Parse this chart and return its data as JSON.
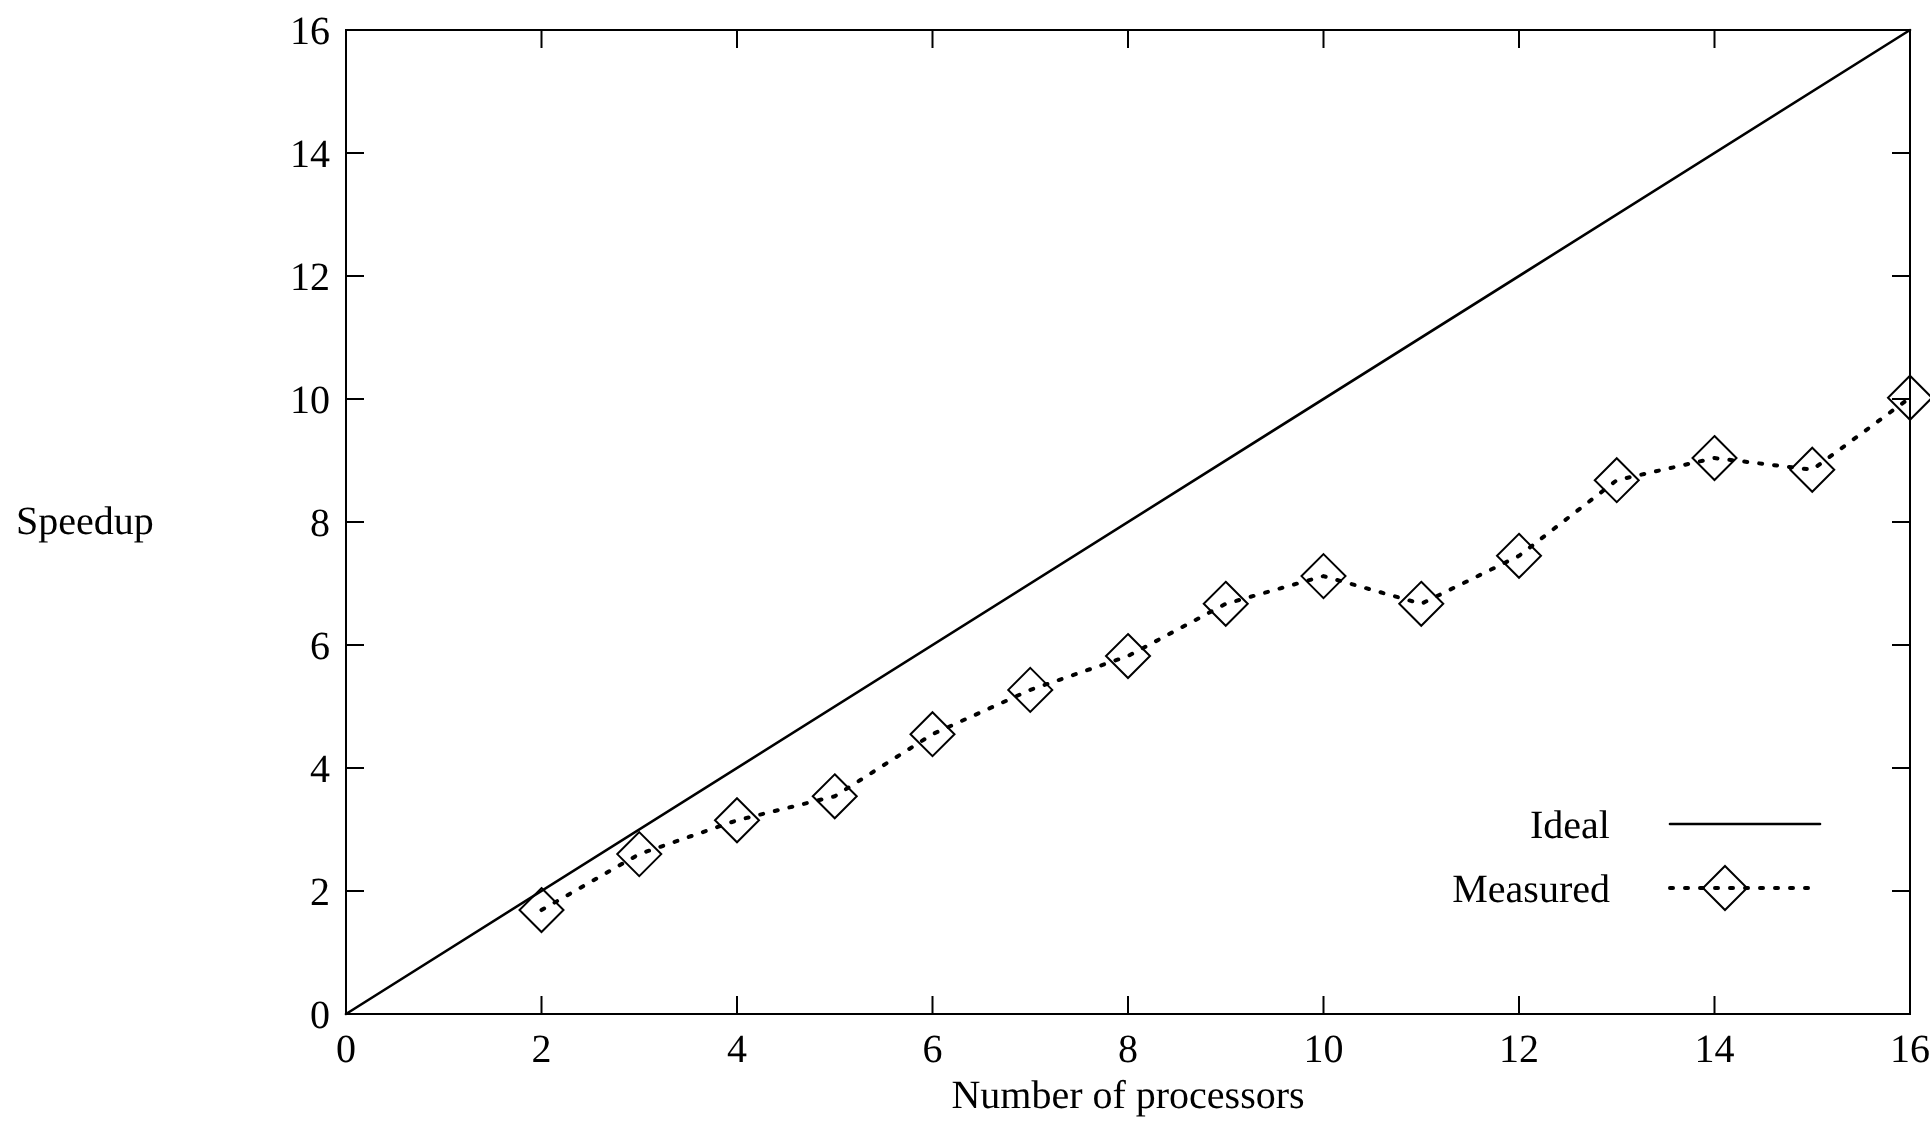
{
  "chart_data": {
    "type": "line",
    "xlabel": "Number of processors",
    "ylabel": "Speedup",
    "xlim": [
      0,
      16
    ],
    "ylim": [
      0,
      16
    ],
    "xticks": [
      0,
      2,
      4,
      6,
      8,
      10,
      12,
      14,
      16
    ],
    "yticks": [
      0,
      2,
      4,
      6,
      8,
      10,
      12,
      14,
      16
    ],
    "grid": false,
    "legend": "bottom right",
    "series": [
      {
        "name": "Ideal",
        "color": "#000000",
        "x": [
          0,
          16
        ],
        "values": [
          0,
          16
        ],
        "marker": "none",
        "line_style": "solid"
      },
      {
        "name": "Measured",
        "color": "#000000",
        "x": [
          2,
          3,
          4,
          5,
          6,
          7,
          8,
          9,
          10,
          11,
          12,
          13,
          14,
          15,
          16
        ],
        "values": [
          1.69,
          2.6,
          3.15,
          3.54,
          4.55,
          5.27,
          5.82,
          6.67,
          7.12,
          6.67,
          7.45,
          8.68,
          9.04,
          8.85,
          10.02
        ],
        "marker": "diamond",
        "line_style": "dotted"
      }
    ]
  }
}
